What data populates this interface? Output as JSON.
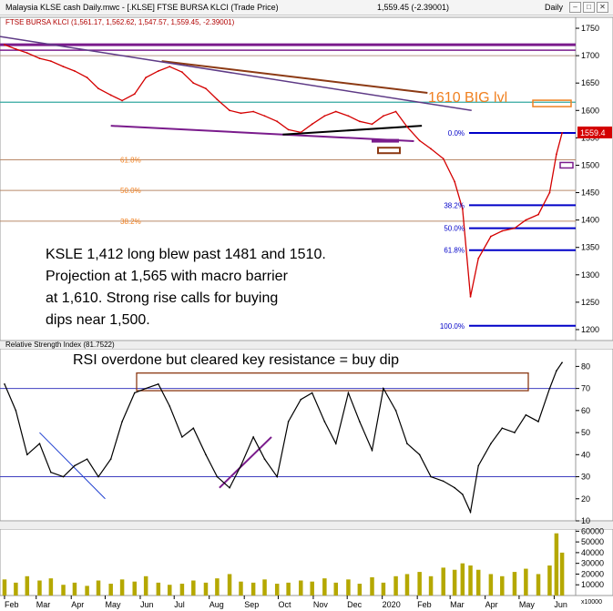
{
  "window": {
    "title": "Malaysia KLSE cash Daily.mwc - [.KLSE] FTSE BURSA KLCI (Trade Price)",
    "last_value": "1,559.45 (-2.39001)",
    "period": "Daily",
    "btn_min": "–",
    "btn_max": "□",
    "btn_close": "✕"
  },
  "chart_data": [
    {
      "type": "line",
      "title": "FTSE BURSA KLCI (1,561.17, 1,562.62, 1,547.57, 1,559.45, -2.39001)",
      "x": [
        "2019-02-01",
        "2019-02-11",
        "2019-02-21",
        "2019-03-04",
        "2019-03-14",
        "2019-03-25",
        "2019-04-04",
        "2019-04-15",
        "2019-04-25",
        "2019-05-06",
        "2019-05-16",
        "2019-05-27",
        "2019-06-06",
        "2019-06-17",
        "2019-06-27",
        "2019-07-08",
        "2019-07-18",
        "2019-07-29",
        "2019-08-08",
        "2019-08-19",
        "2019-08-29",
        "2019-09-09",
        "2019-09-19",
        "2019-09-30",
        "2019-10-10",
        "2019-10-21",
        "2019-10-31",
        "2019-11-11",
        "2019-11-21",
        "2019-12-02",
        "2019-12-12",
        "2019-12-23",
        "2020-01-02",
        "2020-01-13",
        "2020-01-23",
        "2020-02-03",
        "2020-02-13",
        "2020-02-24",
        "2020-03-05",
        "2020-03-12",
        "2020-03-19",
        "2020-03-26",
        "2020-04-06",
        "2020-04-16",
        "2020-04-27",
        "2020-05-07",
        "2020-05-18",
        "2020-05-28",
        "2020-06-03",
        "2020-06-08"
      ],
      "series": [
        {
          "values": [
            1720,
            1712,
            1705,
            1695,
            1690,
            1680,
            1672,
            1660,
            1640,
            1628,
            1618,
            1630,
            1660,
            1672,
            1680,
            1670,
            1650,
            1640,
            1620,
            1600,
            1595,
            1598,
            1590,
            1580,
            1565,
            1560,
            1575,
            1590,
            1598,
            1590,
            1580,
            1575,
            1590,
            1598,
            1570,
            1545,
            1530,
            1512,
            1470,
            1420,
            1260,
            1330,
            1370,
            1380,
            1385,
            1400,
            1410,
            1450,
            1520,
            1559
          ]
        }
      ],
      "ylim": [
        1180,
        1770
      ],
      "y_ticks": [
        1750,
        1700,
        1650,
        1600,
        1550,
        1500,
        1450,
        1400,
        1350,
        1300,
        1250,
        1200
      ],
      "x_tick_labels": [
        "Feb",
        "Mar",
        "Apr",
        "May",
        "Jun",
        "Jul",
        "Aug",
        "Sep",
        "Oct",
        "Nov",
        "Dec",
        "2020",
        "Feb",
        "Mar",
        "Apr",
        "May",
        "Jun"
      ],
      "last_price_label": "1559.4",
      "resistance_label": "1610 BIG lvl",
      "fib_left_labels": [
        "61.8%",
        "50.0%",
        "38.2%"
      ],
      "fib_right_labels": [
        "0.0%",
        "38.2%",
        "50.0%",
        "61.8%",
        "100.0%"
      ],
      "annotation": "KSLE 1,412 long blew past 1481 and 1510. Projection at 1,565 with macro barrier at 1,610. Strong rise calls for buying dips near 1,500.",
      "grid": false
    },
    {
      "type": "line",
      "title": "Relative Strength Index (81.7522)",
      "x": [
        "2019-02-01",
        "2019-02-11",
        "2019-02-21",
        "2019-03-04",
        "2019-03-14",
        "2019-03-25",
        "2019-04-04",
        "2019-04-15",
        "2019-04-25",
        "2019-05-06",
        "2019-05-16",
        "2019-05-27",
        "2019-06-06",
        "2019-06-17",
        "2019-06-27",
        "2019-07-08",
        "2019-07-18",
        "2019-07-29",
        "2019-08-08",
        "2019-08-19",
        "2019-08-29",
        "2019-09-09",
        "2019-09-19",
        "2019-09-30",
        "2019-10-10",
        "2019-10-21",
        "2019-10-31",
        "2019-11-11",
        "2019-11-21",
        "2019-12-02",
        "2019-12-12",
        "2019-12-23",
        "2020-01-02",
        "2020-01-13",
        "2020-01-23",
        "2020-02-03",
        "2020-02-13",
        "2020-02-24",
        "2020-03-05",
        "2020-03-12",
        "2020-03-19",
        "2020-03-26",
        "2020-04-06",
        "2020-04-16",
        "2020-04-27",
        "2020-05-07",
        "2020-05-18",
        "2020-05-28",
        "2020-06-03",
        "2020-06-08"
      ],
      "series": [
        {
          "values": [
            72,
            60,
            40,
            45,
            32,
            30,
            35,
            38,
            30,
            38,
            55,
            68,
            70,
            72,
            62,
            48,
            52,
            40,
            30,
            25,
            35,
            48,
            38,
            30,
            55,
            65,
            68,
            55,
            45,
            68,
            55,
            42,
            70,
            60,
            45,
            40,
            30,
            28,
            25,
            22,
            14,
            35,
            45,
            52,
            50,
            58,
            55,
            70,
            78,
            81.75
          ]
        }
      ],
      "ylim": [
        10,
        88
      ],
      "y_ticks": [
        80,
        70,
        60,
        50,
        40,
        30,
        20,
        10
      ],
      "levels": [
        70,
        30
      ],
      "annotation": "RSI overdone but cleared key resistance = buy dip"
    },
    {
      "type": "bar",
      "x": [
        "2019-02-01",
        "2019-02-11",
        "2019-02-21",
        "2019-03-04",
        "2019-03-14",
        "2019-03-25",
        "2019-04-04",
        "2019-04-15",
        "2019-04-25",
        "2019-05-06",
        "2019-05-16",
        "2019-05-27",
        "2019-06-06",
        "2019-06-17",
        "2019-06-27",
        "2019-07-08",
        "2019-07-18",
        "2019-07-29",
        "2019-08-08",
        "2019-08-19",
        "2019-08-29",
        "2019-09-09",
        "2019-09-19",
        "2019-09-30",
        "2019-10-10",
        "2019-10-21",
        "2019-10-31",
        "2019-11-11",
        "2019-11-21",
        "2019-12-02",
        "2019-12-12",
        "2019-12-23",
        "2020-01-02",
        "2020-01-13",
        "2020-01-23",
        "2020-02-03",
        "2020-02-13",
        "2020-02-24",
        "2020-03-05",
        "2020-03-12",
        "2020-03-19",
        "2020-03-26",
        "2020-04-06",
        "2020-04-16",
        "2020-04-27",
        "2020-05-07",
        "2020-05-18",
        "2020-05-28",
        "2020-06-03",
        "2020-06-08"
      ],
      "values": [
        15000,
        12000,
        18000,
        14000,
        16000,
        10000,
        12000,
        9000,
        14000,
        11000,
        15000,
        13000,
        18000,
        12000,
        10000,
        11000,
        14000,
        12000,
        16000,
        20000,
        13000,
        12000,
        15000,
        11000,
        12000,
        14000,
        13000,
        16000,
        12000,
        15000,
        11000,
        17000,
        12000,
        18000,
        20000,
        22000,
        18000,
        26000,
        24000,
        30000,
        28000,
        24000,
        20000,
        18000,
        22000,
        25000,
        20000,
        28000,
        58000,
        40000
      ],
      "ylim": [
        0,
        62000
      ],
      "y_ticks": [
        60000,
        50000,
        40000,
        30000,
        20000,
        10000
      ],
      "multiplier": "x10000"
    }
  ],
  "colors": {
    "price": "#d40000",
    "rsi": "#000000",
    "volume": "#b5a800",
    "fib_blue": "#0000c8",
    "purple": "#7a1b8c",
    "brown": "#8c3a14",
    "teal": "#33a8a0",
    "orange": "#f08020",
    "last_price_bg": "#d40000"
  }
}
